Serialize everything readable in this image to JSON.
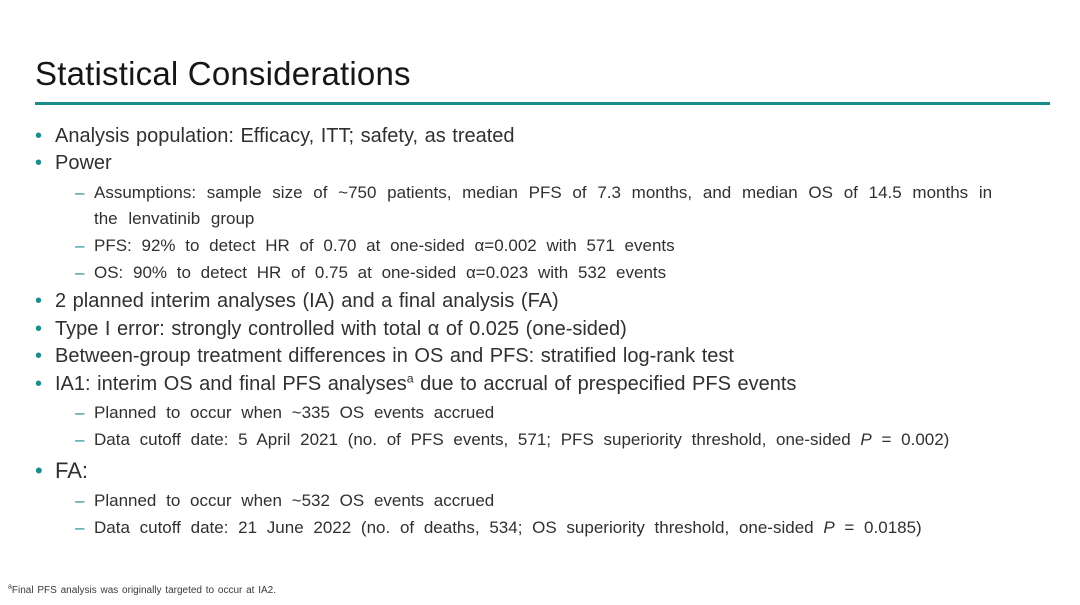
{
  "slide": {
    "title": "Statistical Considerations",
    "accent_color": "#1a8c8c",
    "text_color": "#303030",
    "background_color": "#ffffff",
    "markers": {
      "level1": "•",
      "level2": "–"
    },
    "bullets": [
      {
        "level": 1,
        "lines": [
          [
            {
              "t": "Analysis population: Efficacy, ITT; safety, as treated"
            }
          ]
        ]
      },
      {
        "level": 1,
        "lines": [
          [
            {
              "t": "Power"
            }
          ]
        ]
      },
      {
        "level": 2,
        "ws": 6,
        "lines": [
          [
            {
              "t": "Assumptions: sample size of ~750 patients, median PFS of 7.3 months, and median OS of 14.5 months in"
            }
          ],
          [
            {
              "t": "the lenvatinib group"
            }
          ]
        ]
      },
      {
        "level": 2,
        "lines": [
          [
            {
              "t": "PFS: 92% to detect HR of 0.70 at one-sided α=0.002 with 571 events"
            }
          ]
        ]
      },
      {
        "level": 2,
        "lines": [
          [
            {
              "t": "OS: 90% to detect HR of 0.75 at one-sided α=0.023 with 532 events"
            }
          ]
        ]
      },
      {
        "level": 1,
        "lines": [
          [
            {
              "t": "2 planned interim analyses (IA) and a final analysis (FA)"
            }
          ]
        ]
      },
      {
        "level": 1,
        "lines": [
          [
            {
              "t": "Type I error: strongly controlled with total α of 0.025 (one-sided)"
            }
          ]
        ]
      },
      {
        "level": 1,
        "lines": [
          [
            {
              "t": "Between-group treatment differences in OS and PFS: stratified log-rank test"
            }
          ]
        ]
      },
      {
        "level": 1,
        "lines": [
          [
            {
              "t": "IA1: interim OS and final PFS analyses"
            },
            {
              "t": "a",
              "s": "sup"
            },
            {
              "t": " due to accrual of prespecified PFS events"
            }
          ]
        ]
      },
      {
        "level": 2,
        "lines": [
          [
            {
              "t": "Planned to occur when ~335 OS events accrued"
            }
          ]
        ]
      },
      {
        "level": 2,
        "lines": [
          [
            {
              "t": "Data cutoff date: 5 April 2021 (no. of PFS events, 571; PFS superiority threshold, one-sided "
            },
            {
              "t": "P",
              "s": "i"
            },
            {
              "t": " = 0.002)"
            }
          ]
        ]
      },
      {
        "level": 1,
        "fs": 22,
        "lines": [
          [
            {
              "t": "FA:"
            }
          ]
        ]
      },
      {
        "level": 2,
        "lines": [
          [
            {
              "t": "Planned to occur when ~532 OS events accrued"
            }
          ]
        ]
      },
      {
        "level": 2,
        "lines": [
          [
            {
              "t": "Data cutoff date: 21 June 2022 (no. of deaths, 534; OS superiority threshold, one-sided "
            },
            {
              "t": "P",
              "s": "i"
            },
            {
              "t": " = 0.0185)"
            }
          ]
        ]
      }
    ],
    "footnote": {
      "sup": "a",
      "text": "Final PFS analysis was originally targeted to occur at IA2."
    }
  }
}
